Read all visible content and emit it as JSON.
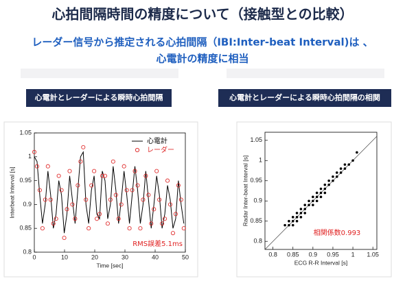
{
  "slide": {
    "title": "心拍間隔時間の精度について（接触型との比較）",
    "subtitle_lines": [
      "レーダー信号から推定される心拍間隔（IBI:Inter-beat Interval)は 、",
      "心電計の精度に相当"
    ]
  },
  "chart_data": [
    {
      "type": "line",
      "title": "心電計とレーダーによる瞬時心拍間隔",
      "xlabel": "Time [sec]",
      "ylabel": "Interbeat Interval [s]",
      "annotation": "RMS誤差5.1ms",
      "xlim": [
        0,
        50
      ],
      "ylim": [
        0.8,
        1.05
      ],
      "xticks": [
        0,
        10,
        20,
        30,
        40,
        50
      ],
      "yticks": [
        0.8,
        0.85,
        0.9,
        0.95,
        1,
        1.05
      ],
      "x": [
        0,
        0.9,
        1.8,
        2.7,
        3.6,
        4.5,
        5.4,
        6.3,
        7.2,
        8.1,
        9.0,
        9.9,
        10.8,
        11.7,
        12.6,
        13.5,
        14.4,
        15.3,
        16.2,
        17.1,
        18.0,
        18.9,
        19.8,
        20.7,
        21.6,
        22.5,
        23.4,
        24.3,
        25.2,
        26.1,
        27.0,
        27.9,
        28.8,
        29.7,
        30.6,
        31.5,
        32.4,
        33.3,
        34.2,
        35.1,
        36.0,
        36.9,
        37.8,
        38.7,
        39.6,
        40.5,
        41.4,
        42.3,
        43.2,
        44.1,
        45.0,
        45.9,
        46.8,
        47.7,
        48.6,
        49.5
      ],
      "series": [
        {
          "name": "心電計",
          "color": "#000000",
          "mode": "line",
          "values": [
            1.0,
            0.99,
            0.92,
            0.86,
            0.9,
            0.97,
            0.92,
            0.85,
            0.88,
            0.95,
            0.92,
            0.84,
            0.88,
            0.96,
            0.91,
            0.86,
            0.93,
            1.0,
            1.01,
            0.9,
            0.86,
            0.93,
            0.96,
            0.88,
            0.87,
            0.97,
            0.95,
            0.87,
            0.9,
            0.98,
            0.93,
            0.86,
            0.91,
            0.97,
            0.92,
            0.86,
            0.92,
            0.98,
            0.93,
            0.86,
            0.9,
            0.97,
            0.91,
            0.85,
            0.9,
            0.96,
            0.92,
            0.85,
            0.88,
            0.94,
            0.91,
            0.85,
            0.87,
            0.95,
            0.9,
            0.86
          ]
        },
        {
          "name": "レーダー",
          "color": "#e03030",
          "mode": "markers",
          "values": [
            1.01,
            0.98,
            0.93,
            0.85,
            0.91,
            0.98,
            0.91,
            0.86,
            0.87,
            0.96,
            0.93,
            0.83,
            0.89,
            0.97,
            0.9,
            0.87,
            0.94,
            0.99,
            1.02,
            0.91,
            0.85,
            0.94,
            0.97,
            0.87,
            0.88,
            0.96,
            0.96,
            0.86,
            0.91,
            0.99,
            0.92,
            0.87,
            0.9,
            0.98,
            0.93,
            0.85,
            0.93,
            0.97,
            0.94,
            0.85,
            0.91,
            0.96,
            0.92,
            0.86,
            0.89,
            0.97,
            0.91,
            0.86,
            0.87,
            0.95,
            0.9,
            0.84,
            0.88,
            0.94,
            0.91,
            0.85
          ]
        }
      ]
    },
    {
      "type": "scatter",
      "title": "心電計とレーダーによる瞬時心拍間隔の相関",
      "xlabel": "ECG R-R Interval [s]",
      "ylabel": "Radar Inter-beat Interval [s]",
      "annotation": "相関係数0.993",
      "xlim": [
        0.78,
        1.06
      ],
      "ylim": [
        0.78,
        1.07
      ],
      "xticks": [
        0.8,
        0.85,
        0.9,
        0.95,
        1,
        1.05
      ],
      "yticks": [
        0.8,
        0.85,
        0.9,
        0.95,
        1,
        1.05
      ],
      "diagonal": true,
      "color": "#000000",
      "x": [
        0.83,
        0.84,
        0.84,
        0.85,
        0.85,
        0.85,
        0.86,
        0.86,
        0.86,
        0.87,
        0.87,
        0.87,
        0.88,
        0.88,
        0.88,
        0.89,
        0.89,
        0.9,
        0.9,
        0.9,
        0.91,
        0.91,
        0.91,
        0.92,
        0.92,
        0.92,
        0.93,
        0.93,
        0.93,
        0.94,
        0.94,
        0.95,
        0.95,
        0.96,
        0.96,
        0.97,
        0.97,
        0.98,
        0.98,
        0.99,
        1.0,
        1.01
      ],
      "values": [
        0.84,
        0.84,
        0.85,
        0.85,
        0.86,
        0.84,
        0.86,
        0.87,
        0.85,
        0.87,
        0.88,
        0.86,
        0.88,
        0.87,
        0.89,
        0.89,
        0.9,
        0.9,
        0.91,
        0.89,
        0.91,
        0.92,
        0.9,
        0.92,
        0.93,
        0.91,
        0.93,
        0.94,
        0.92,
        0.94,
        0.95,
        0.95,
        0.96,
        0.96,
        0.97,
        0.97,
        0.98,
        0.98,
        0.99,
        0.99,
        1.0,
        1.02
      ]
    }
  ]
}
